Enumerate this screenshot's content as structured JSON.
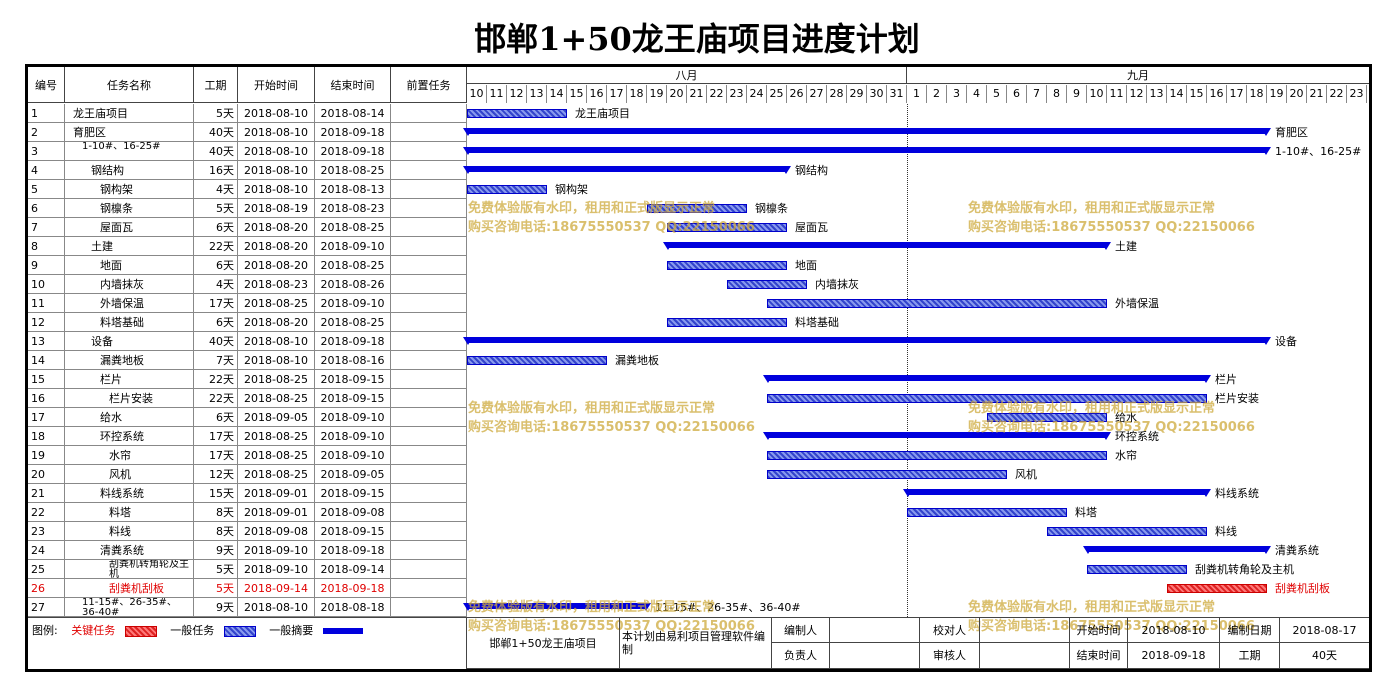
{
  "title": "邯郸1+50龙王庙项目进度计划",
  "headers": {
    "id": "编号",
    "name": "任务名称",
    "duration": "工期",
    "start": "开始时间",
    "end": "结束时间",
    "pred": "前置任务"
  },
  "months": [
    {
      "label": "八月",
      "days": [
        "10",
        "11",
        "12",
        "13",
        "14",
        "15",
        "16",
        "17",
        "18",
        "19",
        "20",
        "21",
        "22",
        "23",
        "24",
        "25",
        "26",
        "27",
        "28",
        "29",
        "30",
        "31"
      ]
    },
    {
      "label": "九月",
      "days": [
        "1",
        "2",
        "3",
        "4",
        "5",
        "6",
        "7",
        "8",
        "9",
        "10",
        "11",
        "12",
        "13",
        "14",
        "15",
        "16",
        "17",
        "18",
        "19",
        "20",
        "21",
        "22",
        "23"
      ]
    }
  ],
  "tasks": [
    {
      "id": "1",
      "name": "龙王庙项目",
      "indent": 0,
      "duration": "5天",
      "start": "2018-08-10",
      "end": "2018-08-14",
      "type": "task",
      "s": 0,
      "e": 5,
      "label": "龙王庙项目"
    },
    {
      "id": "2",
      "name": "育肥区",
      "indent": 0,
      "duration": "40天",
      "start": "2018-08-10",
      "end": "2018-09-18",
      "type": "summary",
      "s": 0,
      "e": 40,
      "label": "育肥区"
    },
    {
      "id": "3",
      "name": "1-10#、16-25#",
      "indent": 1,
      "duration": "40天",
      "start": "2018-08-10",
      "end": "2018-09-18",
      "type": "summary",
      "s": 0,
      "e": 40,
      "label": "1-10#、16-25#"
    },
    {
      "id": "4",
      "name": "钢结构",
      "indent": 2,
      "duration": "16天",
      "start": "2018-08-10",
      "end": "2018-08-25",
      "type": "summary",
      "s": 0,
      "e": 16,
      "label": "钢结构"
    },
    {
      "id": "5",
      "name": "钢构架",
      "indent": 3,
      "duration": "4天",
      "start": "2018-08-10",
      "end": "2018-08-13",
      "type": "task",
      "s": 0,
      "e": 4,
      "label": "钢构架"
    },
    {
      "id": "6",
      "name": "钢檩条",
      "indent": 3,
      "duration": "5天",
      "start": "2018-08-19",
      "end": "2018-08-23",
      "type": "task",
      "s": 9,
      "e": 14,
      "label": "钢檩条"
    },
    {
      "id": "7",
      "name": "屋面瓦",
      "indent": 3,
      "duration": "6天",
      "start": "2018-08-20",
      "end": "2018-08-25",
      "type": "task",
      "s": 10,
      "e": 16,
      "label": "屋面瓦"
    },
    {
      "id": "8",
      "name": "土建",
      "indent": 2,
      "duration": "22天",
      "start": "2018-08-20",
      "end": "2018-09-10",
      "type": "summary",
      "s": 10,
      "e": 32,
      "label": "土建"
    },
    {
      "id": "9",
      "name": "地面",
      "indent": 3,
      "duration": "6天",
      "start": "2018-08-20",
      "end": "2018-08-25",
      "type": "task",
      "s": 10,
      "e": 16,
      "label": "地面"
    },
    {
      "id": "10",
      "name": "内墙抹灰",
      "indent": 3,
      "duration": "4天",
      "start": "2018-08-23",
      "end": "2018-08-26",
      "type": "task",
      "s": 13,
      "e": 17,
      "label": "内墙抹灰"
    },
    {
      "id": "11",
      "name": "外墙保温",
      "indent": 3,
      "duration": "17天",
      "start": "2018-08-25",
      "end": "2018-09-10",
      "type": "task",
      "s": 15,
      "e": 32,
      "label": "外墙保温"
    },
    {
      "id": "12",
      "name": "料塔基础",
      "indent": 3,
      "duration": "6天",
      "start": "2018-08-20",
      "end": "2018-08-25",
      "type": "task",
      "s": 10,
      "e": 16,
      "label": "料塔基础"
    },
    {
      "id": "13",
      "name": "设备",
      "indent": 2,
      "duration": "40天",
      "start": "2018-08-10",
      "end": "2018-09-18",
      "type": "summary",
      "s": 0,
      "e": 40,
      "label": "设备"
    },
    {
      "id": "14",
      "name": "漏粪地板",
      "indent": 3,
      "duration": "7天",
      "start": "2018-08-10",
      "end": "2018-08-16",
      "type": "task",
      "s": 0,
      "e": 7,
      "label": "漏粪地板"
    },
    {
      "id": "15",
      "name": "栏片",
      "indent": 3,
      "duration": "22天",
      "start": "2018-08-25",
      "end": "2018-09-15",
      "type": "summary",
      "s": 15,
      "e": 37,
      "label": "栏片"
    },
    {
      "id": "16",
      "name": "栏片安装",
      "indent": 4,
      "duration": "22天",
      "start": "2018-08-25",
      "end": "2018-09-15",
      "type": "task",
      "s": 15,
      "e": 37,
      "label": "栏片安装"
    },
    {
      "id": "17",
      "name": "给水",
      "indent": 3,
      "duration": "6天",
      "start": "2018-09-05",
      "end": "2018-09-10",
      "type": "task",
      "s": 26,
      "e": 32,
      "label": "给水"
    },
    {
      "id": "18",
      "name": "环控系统",
      "indent": 3,
      "duration": "17天",
      "start": "2018-08-25",
      "end": "2018-09-10",
      "type": "summary",
      "s": 15,
      "e": 32,
      "label": "环控系统"
    },
    {
      "id": "19",
      "name": "水帘",
      "indent": 4,
      "duration": "17天",
      "start": "2018-08-25",
      "end": "2018-09-10",
      "type": "task",
      "s": 15,
      "e": 32,
      "label": "水帘"
    },
    {
      "id": "20",
      "name": "风机",
      "indent": 4,
      "duration": "12天",
      "start": "2018-08-25",
      "end": "2018-09-05",
      "type": "task",
      "s": 15,
      "e": 27,
      "label": "风机"
    },
    {
      "id": "21",
      "name": "料线系统",
      "indent": 3,
      "duration": "15天",
      "start": "2018-09-01",
      "end": "2018-09-15",
      "type": "summary",
      "s": 22,
      "e": 37,
      "label": "料线系统"
    },
    {
      "id": "22",
      "name": "料塔",
      "indent": 4,
      "duration": "8天",
      "start": "2018-09-01",
      "end": "2018-09-08",
      "type": "task",
      "s": 22,
      "e": 30,
      "label": "料塔"
    },
    {
      "id": "23",
      "name": "料线",
      "indent": 4,
      "duration": "8天",
      "start": "2018-09-08",
      "end": "2018-09-15",
      "type": "task",
      "s": 29,
      "e": 37,
      "label": "料线"
    },
    {
      "id": "24",
      "name": "清粪系统",
      "indent": 3,
      "duration": "9天",
      "start": "2018-09-10",
      "end": "2018-09-18",
      "type": "summary",
      "s": 31,
      "e": 40,
      "label": "清粪系统"
    },
    {
      "id": "25",
      "name": "刮粪机转角轮及主机",
      "indent": 4,
      "duration": "5天",
      "start": "2018-09-10",
      "end": "2018-09-14",
      "type": "task",
      "s": 31,
      "e": 36,
      "label": "刮粪机转角轮及主机"
    },
    {
      "id": "26",
      "name": "刮粪机刮板",
      "indent": 4,
      "duration": "5天",
      "start": "2018-09-14",
      "end": "2018-09-18",
      "type": "critical",
      "s": 35,
      "e": 40,
      "label": "刮粪机刮板"
    },
    {
      "id": "27",
      "name": "11-15#、26-35#、36-40#",
      "indent": 1,
      "duration": "9天",
      "start": "2018-08-10",
      "end": "2018-08-18",
      "type": "summary",
      "s": 0,
      "e": 9,
      "label": "11-15#、26-35#、36-40#"
    }
  ],
  "watermark": {
    "line1": "免费体验版有水印，租用和正式版显示正常",
    "line2": "购买咨询电话:18675550537 QQ:22150066"
  },
  "legend": {
    "label": "图例:",
    "critical": "关键任务",
    "normal": "一般任务",
    "summary": "一般摘要"
  },
  "footer": {
    "project": "邯郸1+50龙王庙项目",
    "software": "本计划由易利项目管理软件编制",
    "editor": "编制人",
    "editor_value": "",
    "checker": "校对人",
    "checker_value": "",
    "responsible": "负责人",
    "responsible_value": "",
    "reviewer": "审核人",
    "reviewer_value": "",
    "start_label": "开始时间",
    "start_value": "2018-08-10",
    "end_label": "结束时间",
    "end_value": "2018-09-18",
    "date_label": "编制日期",
    "date_value": "2018-08-17",
    "duration_label": "工期",
    "duration_value": "40天"
  },
  "colors": {
    "summary": "#0000dd",
    "task": "#3344cc",
    "critical": "#dd2222",
    "watermark": "#cdaa3c"
  }
}
